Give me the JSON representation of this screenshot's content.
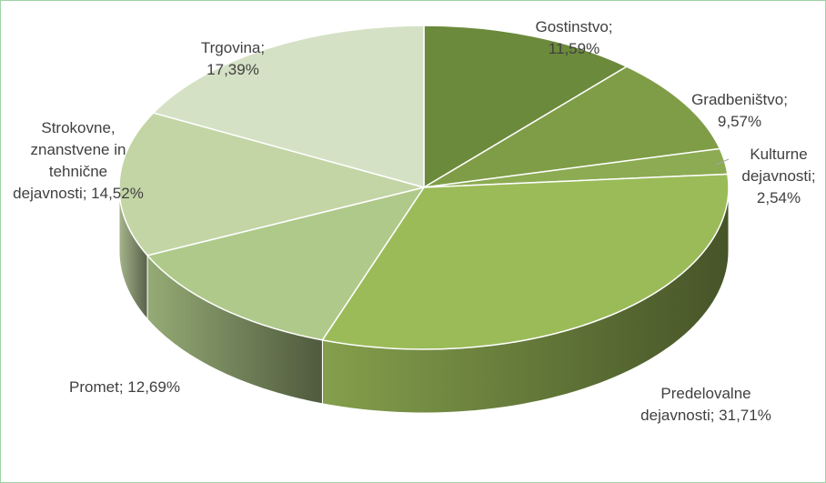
{
  "chart_data": {
    "type": "pie",
    "values": [
      11.59,
      9.57,
      2.54,
      31.71,
      12.69,
      14.52,
      17.39
    ],
    "value_labels": [
      "Gostinstvo; 11,59%",
      "Gradbeništvo; 9,57%",
      "Kulturne dejavnosti; 2,54%",
      "Predelovalne dejavnosti; 31,71%",
      "Promet; 12,69%",
      "Strokovne, znanstvene in tehnične dejavnosti; 14,52%",
      "Trgovina; 17,39%"
    ],
    "colors": [
      "#6b8a3c",
      "#7f9d47",
      "#8cab52",
      "#9bbb59",
      "#afc98a",
      "#c3d5a5",
      "#d5e1c5"
    ]
  }
}
